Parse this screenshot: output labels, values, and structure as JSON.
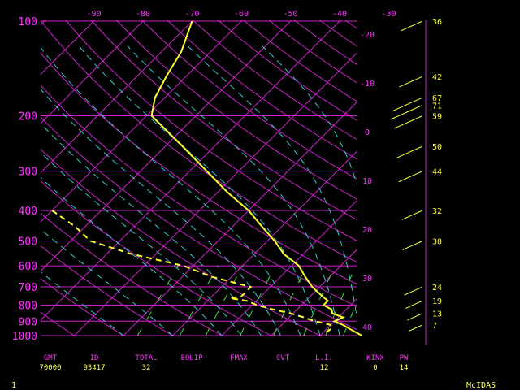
{
  "chart_data": {
    "type": "line",
    "title": "",
    "colors": {
      "isotherm": "#cc22cc",
      "dry_adiabat": "#cc22cc",
      "moist_adiabat": "#33cccc",
      "mixing_ratio": "#44dd44",
      "temperature": "#ffff33",
      "dewpoint": "#ffff33",
      "labels": "#ff33ff",
      "values": "#ffff66",
      "wind": "#ffff33"
    },
    "pressure_axis": {
      "labels": [
        "100",
        "200",
        "300",
        "400",
        "500",
        "600",
        "700",
        "800",
        "900",
        "1000"
      ],
      "levels_hpa": [
        100,
        200,
        300,
        400,
        500,
        600,
        700,
        800,
        900,
        1000
      ]
    },
    "top_temp_labels": [
      "-90",
      "-80",
      "-70",
      "-60",
      "-50",
      "-40",
      "-30"
    ],
    "top_temp_values": [
      -90,
      -80,
      -70,
      -60,
      -50,
      -40,
      -30
    ],
    "right_temp_labels": [
      "-20",
      "-10",
      "0",
      "10",
      "20",
      "30",
      "40"
    ],
    "right_temp_values": [
      -20,
      -10,
      0,
      10,
      20,
      30,
      40
    ],
    "series": [
      {
        "kind": "temperature",
        "points": [
          {
            "p": 1000,
            "t": 28.5
          },
          {
            "p": 975,
            "t": 26.5
          },
          {
            "p": 950,
            "t": 24.5
          },
          {
            "p": 925,
            "t": 22.5
          },
          {
            "p": 900,
            "t": 20
          },
          {
            "p": 875,
            "t": 21
          },
          {
            "p": 850,
            "t": 18
          },
          {
            "p": 825,
            "t": 17
          },
          {
            "p": 800,
            "t": 14.5
          },
          {
            "p": 775,
            "t": 14.5
          },
          {
            "p": 750,
            "t": 12.5
          },
          {
            "p": 725,
            "t": 10.5
          },
          {
            "p": 700,
            "t": 8.5
          },
          {
            "p": 650,
            "t": 5
          },
          {
            "p": 600,
            "t": 1.5
          },
          {
            "p": 550,
            "t": -4
          },
          {
            "p": 500,
            "t": -8.5
          },
          {
            "p": 450,
            "t": -14
          },
          {
            "p": 400,
            "t": -20
          },
          {
            "p": 350,
            "t": -28
          },
          {
            "p": 300,
            "t": -36.5
          },
          {
            "p": 250,
            "t": -46.5
          },
          {
            "p": 200,
            "t": -59
          },
          {
            "p": 175,
            "t": -62
          },
          {
            "p": 150,
            "t": -64
          },
          {
            "p": 125,
            "t": -66
          },
          {
            "p": 100,
            "t": -70
          }
        ]
      },
      {
        "kind": "dewpoint",
        "points": [
          {
            "p": 975,
            "t": 20.5
          },
          {
            "p": 950,
            "t": 21
          },
          {
            "p": 925,
            "t": 20
          },
          {
            "p": 900,
            "t": 16
          },
          {
            "p": 875,
            "t": 13
          },
          {
            "p": 850,
            "t": 9.5
          },
          {
            "p": 825,
            "t": 5
          },
          {
            "p": 800,
            "t": 1
          },
          {
            "p": 775,
            "t": -2
          },
          {
            "p": 760,
            "t": -6
          },
          {
            "p": 750,
            "t": -4
          },
          {
            "p": 725,
            "t": -4
          },
          {
            "p": 700,
            "t": -4
          },
          {
            "p": 650,
            "t": -14
          },
          {
            "p": 600,
            "t": -22
          },
          {
            "p": 550,
            "t": -35
          },
          {
            "p": 500,
            "t": -46
          },
          {
            "p": 450,
            "t": -52
          },
          {
            "p": 400,
            "t": -60
          }
        ]
      }
    ],
    "wind_barb_labels": [
      {
        "p": 100,
        "label": "36"
      },
      {
        "p": 150,
        "label": "42"
      },
      {
        "p": 175,
        "label": "67"
      },
      {
        "p": 185,
        "label": "71"
      },
      {
        "p": 200,
        "label": "59"
      },
      {
        "p": 250,
        "label": "50"
      },
      {
        "p": 300,
        "label": "44"
      },
      {
        "p": 400,
        "label": "32"
      },
      {
        "p": 500,
        "label": "30"
      },
      {
        "p": 700,
        "label": "24"
      },
      {
        "p": 775,
        "label": "19"
      },
      {
        "p": 850,
        "label": "13"
      },
      {
        "p": 925,
        "label": "7"
      }
    ]
  },
  "footer": {
    "headers": [
      "GMT",
      "ID",
      "TOTAL",
      "EQUIP",
      "FMAX",
      "CVT",
      "L.I.",
      "KINX",
      "PW"
    ],
    "values": [
      "70000",
      "93417",
      "32",
      "",
      "",
      "",
      "12",
      "0",
      "14"
    ]
  },
  "frame_number": "1",
  "brand": "McIDAS"
}
